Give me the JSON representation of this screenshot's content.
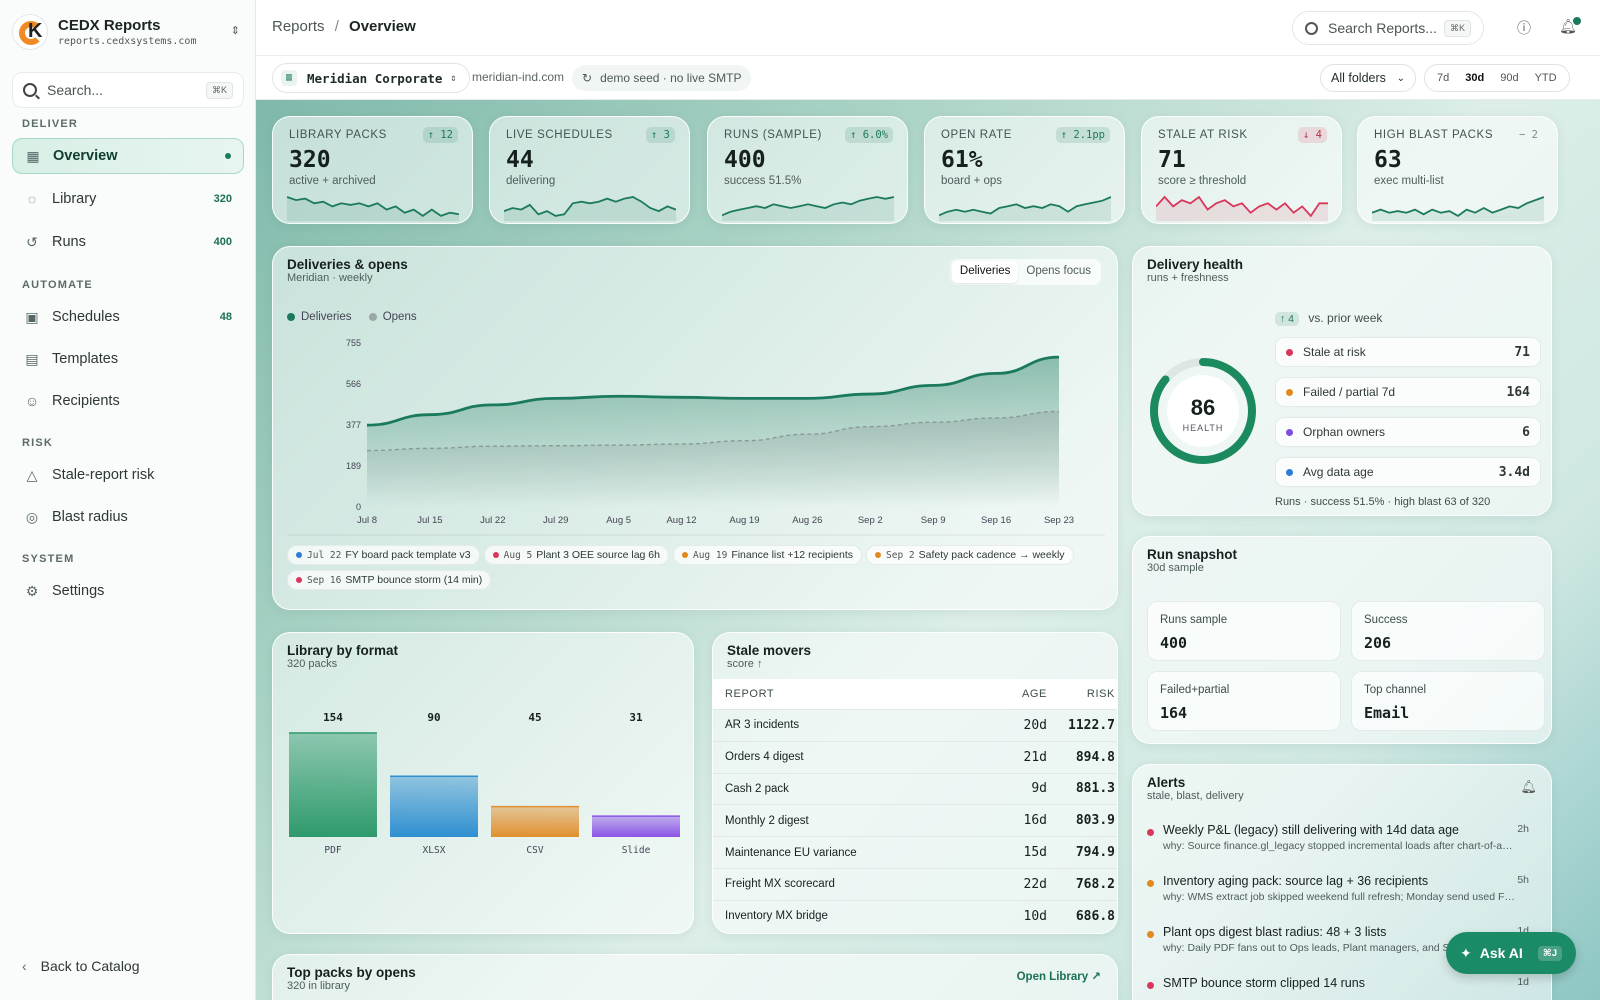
{
  "brand": {
    "title": "CEDX Reports",
    "subtitle": "reports.cedxsystems.com"
  },
  "sidebar": {
    "search_placeholder": "Search...",
    "search_kbd": "⌘K",
    "sections": {
      "deliver": "DELIVER",
      "automate": "AUTOMATE",
      "risk": "RISK",
      "system": "SYSTEM"
    },
    "items": [
      {
        "label": "Overview",
        "count": ""
      },
      {
        "label": "Library",
        "count": "320"
      },
      {
        "label": "Runs",
        "count": "400"
      },
      {
        "label": "Schedules",
        "count": "48"
      },
      {
        "label": "Templates",
        "count": ""
      },
      {
        "label": "Recipients",
        "count": ""
      },
      {
        "label": "Stale-report risk",
        "count": ""
      },
      {
        "label": "Blast radius",
        "count": ""
      },
      {
        "label": "Settings",
        "count": ""
      }
    ],
    "back": "Back to Catalog"
  },
  "header": {
    "crumb_root": "Reports",
    "crumb_sep": "/",
    "crumb_current": "Overview",
    "search_placeholder": "Search Reports...",
    "search_kbd": "⌘K"
  },
  "toolbar": {
    "org": "Meridian Corporate",
    "domain": "meridian-ind.com",
    "seed": "demo seed · no live SMTP",
    "folders": "All folders",
    "ranges": [
      "7d",
      "30d",
      "90d",
      "YTD"
    ],
    "active_range": "30d"
  },
  "kpis": [
    {
      "label": "LIBRARY PACKS",
      "value": "320",
      "sub": "active + archived",
      "delta": "↑ 12",
      "tone": "up",
      "color": "#1b7a5e",
      "spark": [
        8,
        7,
        7.5,
        6,
        6.5,
        5,
        6,
        5.5,
        6,
        5,
        6,
        4,
        5,
        3,
        4,
        2,
        4,
        2,
        3,
        2.5
      ]
    },
    {
      "label": "LIVE SCHEDULES",
      "value": "44",
      "sub": "delivering",
      "delta": "↑ 3",
      "tone": "up",
      "color": "#1b7a5e",
      "spark": [
        3,
        4,
        3.5,
        5,
        2,
        3,
        1.5,
        2,
        5.5,
        6,
        5.5,
        6,
        7,
        6,
        7,
        7.5,
        6,
        4,
        3,
        4.5,
        3.5
      ]
    },
    {
      "label": "RUNS (SAMPLE)",
      "value": "400",
      "sub": "success 51.5%",
      "delta": "↑ 6.0%",
      "tone": "up",
      "color": "#1b7a5e",
      "spark": [
        2,
        3,
        3.5,
        4,
        4.5,
        4,
        5,
        4.5,
        4,
        4.5,
        5,
        4.5,
        4,
        5,
        5.5,
        5,
        6,
        6.5,
        7,
        6.5,
        7
      ]
    },
    {
      "label": "OPEN RATE",
      "value": "61%",
      "sub": "board + ops",
      "delta": "↑ 2.1pp",
      "tone": "up",
      "color": "#1b7a5e",
      "spark": [
        3,
        4,
        4.5,
        4,
        4.5,
        4,
        3.5,
        5,
        5.5,
        6,
        5,
        5.5,
        5,
        6,
        5.5,
        4,
        5.5,
        6,
        6.5,
        7,
        8
      ]
    },
    {
      "label": "STALE AT RISK",
      "value": "71",
      "sub": "score ≥ threshold",
      "delta": "↓ 4",
      "tone": "down",
      "color": "#d9365b",
      "spark": [
        5,
        8,
        5,
        7,
        6,
        8,
        4,
        6,
        7,
        5,
        6,
        3,
        5,
        6,
        4,
        6,
        3,
        5,
        2,
        6,
        6
      ]
    },
    {
      "label": "HIGH BLAST PACKS",
      "value": "63",
      "sub": "exec multi-list",
      "delta": "− 2",
      "tone": "neutral",
      "color": "#1b7a5e",
      "spark": [
        3,
        4,
        3,
        3.5,
        3,
        4,
        2.5,
        4,
        3,
        3.5,
        2,
        4,
        3,
        4.5,
        3,
        4,
        5,
        4.5,
        6,
        7,
        8
      ]
    }
  ],
  "deliveries": {
    "title": "Deliveries & opens",
    "subtitle": "Meridian · weekly",
    "tabs": [
      "Deliveries",
      "Opens focus"
    ],
    "active_tab": "Deliveries",
    "chips": [
      {
        "date": "Jul 22",
        "text": "FY board pack template v3",
        "color": "#2a7fd4"
      },
      {
        "date": "Aug 5",
        "text": "Plant 3 OEE source lag 6h",
        "color": "#d9365b"
      },
      {
        "date": "Aug 19",
        "text": "Finance list +12 recipients",
        "color": "#e08a1e"
      },
      {
        "date": "Sep 2",
        "text": "Safety pack cadence → weekly",
        "color": "#e08a1e"
      },
      {
        "date": "Sep 16",
        "text": "SMTP bounce storm (14 min)",
        "color": "#d9365b"
      }
    ]
  },
  "chart_data": {
    "type": "area",
    "title": "Deliveries & opens",
    "subtitle": "Meridian · weekly",
    "categories": [
      "Jul 8",
      "Jul 15",
      "Jul 22",
      "Jul 29",
      "Aug 5",
      "Aug 12",
      "Aug 19",
      "Aug 26",
      "Sep 2",
      "Sep 9",
      "Sep 16",
      "Sep 23"
    ],
    "yticks": [
      0,
      189,
      377,
      566,
      755
    ],
    "ylim": [
      0,
      755
    ],
    "series": [
      {
        "name": "Deliveries",
        "color": "#1b7a5e",
        "values": [
          377,
          425,
          470,
          500,
          510,
          505,
          500,
          500,
          520,
          560,
          615,
          690
        ]
      },
      {
        "name": "Opens",
        "color": "#9aa8a6",
        "values": [
          260,
          270,
          280,
          282,
          285,
          290,
          305,
          335,
          370,
          390,
          410,
          440
        ]
      }
    ],
    "legend": "top-left",
    "grid": false
  },
  "health": {
    "title": "Delivery health",
    "subtitle": "runs + freshness",
    "score": 86,
    "score_label": "HEALTH",
    "delta": "↑ 4",
    "delta_text": "vs. prior week",
    "rows": [
      {
        "label": "Stale at risk",
        "value": "71",
        "color": "#d9365b"
      },
      {
        "label": "Failed / partial 7d",
        "value": "164",
        "color": "#e08a1e"
      },
      {
        "label": "Orphan owners",
        "value": "6",
        "color": "#7b4de0"
      },
      {
        "label": "Avg data age",
        "value": "3.4d",
        "color": "#2a7fd4"
      }
    ],
    "footer": "Runs · success 51.5% · high blast 63 of 320"
  },
  "snapshot": {
    "title": "Run snapshot",
    "subtitle": "30d sample",
    "tiles": [
      {
        "label": "Runs sample",
        "value": "400"
      },
      {
        "label": "Success",
        "value": "206"
      },
      {
        "label": "Failed+partial",
        "value": "164"
      },
      {
        "label": "Top channel",
        "value": "Email"
      }
    ]
  },
  "format": {
    "title": "Library by format",
    "subtitle": "320 packs",
    "bars": [
      {
        "label": "PDF",
        "value": 154,
        "color": "#2e9a6c"
      },
      {
        "label": "XLSX",
        "value": 90,
        "color": "#2f8fd0"
      },
      {
        "label": "CSV",
        "value": 45,
        "color": "#e0902e"
      },
      {
        "label": "Slide",
        "value": 31,
        "color": "#8a55e6"
      }
    ]
  },
  "stale": {
    "title": "Stale movers",
    "subtitle": "score ↑",
    "headers": {
      "report": "REPORT",
      "age": "AGE",
      "risk": "RISK"
    },
    "rows": [
      {
        "name": "AR 3 incidents",
        "age": "20d",
        "risk": "1122.7"
      },
      {
        "name": "Orders 4 digest",
        "age": "21d",
        "risk": "894.8"
      },
      {
        "name": "Cash 2 pack",
        "age": "9d",
        "risk": "881.3"
      },
      {
        "name": "Monthly 2 digest",
        "age": "16d",
        "risk": "803.9"
      },
      {
        "name": "Maintenance EU variance",
        "age": "15d",
        "risk": "794.9"
      },
      {
        "name": "Freight MX scorecard",
        "age": "22d",
        "risk": "768.2"
      },
      {
        "name": "Inventory MX bridge",
        "age": "10d",
        "risk": "686.8"
      }
    ]
  },
  "alerts": {
    "title": "Alerts",
    "subtitle": "stale, blast, delivery",
    "items": [
      {
        "title": "Weekly P&L (legacy) still delivering with 14d data age",
        "why": "why: Source finance.gl_legacy stopped incremental loads after chart-of-accou...",
        "age": "2h",
        "color": "#d9365b"
      },
      {
        "title": "Inventory aging pack: source lag + 36 recipients",
        "why": "why: WMS extract job skipped weekend full refresh; Monday send used Friday ...",
        "age": "5h",
        "color": "#e08a1e"
      },
      {
        "title": "Plant ops digest blast radius: 48 + 3 lists",
        "why": "why: Daily PDF fans out to Ops leads, Plant managers, and Safety...",
        "age": "1d",
        "color": "#e08a1e"
      },
      {
        "title": "SMTP bounce storm clipped 14 runs",
        "why": "",
        "age": "1d",
        "color": "#d9365b"
      }
    ]
  },
  "top_packs": {
    "title": "Top packs by opens",
    "subtitle": "320 in library",
    "link": "Open Library ↗"
  },
  "ask_ai": {
    "label": "Ask AI",
    "kbd": "⌘J"
  }
}
